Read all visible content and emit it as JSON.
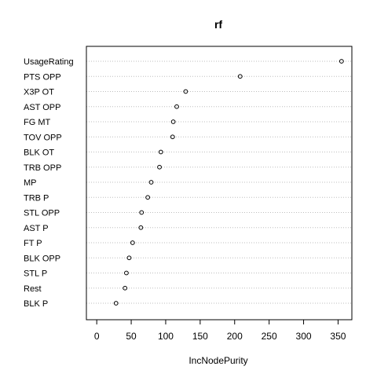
{
  "chart_data": {
    "type": "scatter",
    "title": "rf",
    "xlabel": "IncNodePurity",
    "ylabel": "",
    "xlim": [
      -15,
      370
    ],
    "xticks": [
      0,
      50,
      100,
      150,
      200,
      250,
      300,
      350
    ],
    "grid": "dotted horizontal guide lines",
    "categories": [
      "UsageRating",
      "PTS OPP",
      "X3P OT",
      "AST OPP",
      "FG MT",
      "TOV OPP",
      "BLK OT",
      "TRB OPP",
      "MP",
      "TRB P",
      "STL OPP",
      "AST P",
      "FT P",
      "BLK OPP",
      "STL P",
      "Rest",
      "BLK P"
    ],
    "values": [
      355,
      208,
      129,
      116,
      111,
      110,
      93,
      91,
      79,
      74,
      65,
      64,
      52,
      47,
      43,
      41,
      28
    ]
  }
}
